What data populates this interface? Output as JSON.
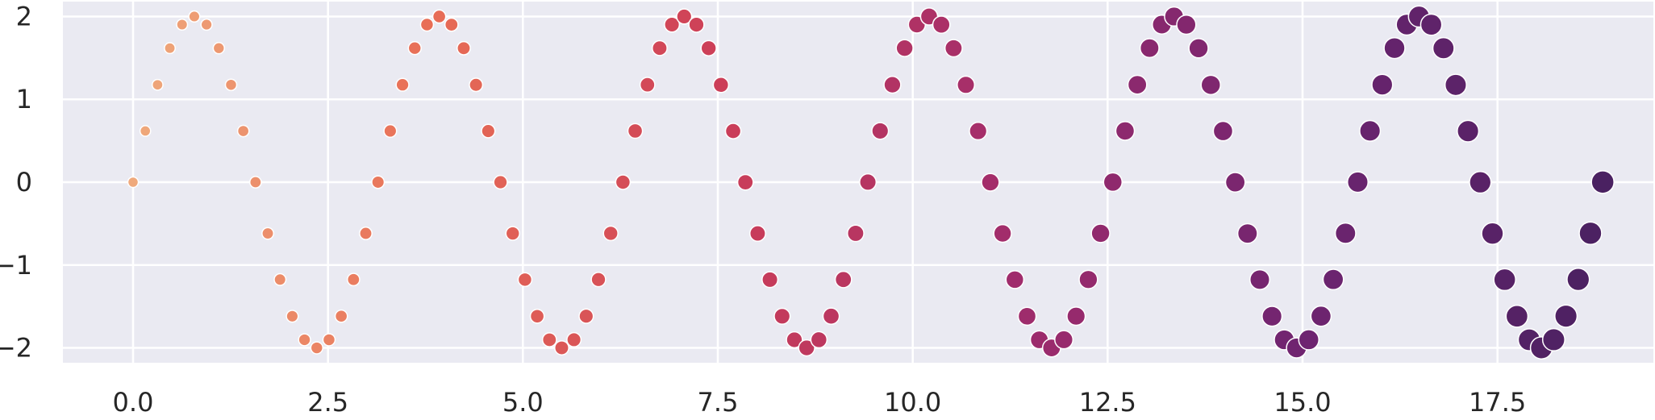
{
  "chart_data": {
    "type": "scatter",
    "title": "",
    "xlabel": "",
    "ylabel": "",
    "xlim": [
      -0.9,
      19.5
    ],
    "ylim": [
      -2.18,
      2.18
    ],
    "x_ticks": [
      0.0,
      2.5,
      5.0,
      7.5,
      10.0,
      12.5,
      15.0,
      17.5
    ],
    "x_tick_labels": [
      "0.0",
      "2.5",
      "5.0",
      "7.5",
      "10.0",
      "12.5",
      "15.0",
      "17.5"
    ],
    "y_ticks": [
      -2,
      -1,
      0,
      1,
      2
    ],
    "y_tick_labels": [
      "−2",
      "−1",
      "0",
      "1",
      "2"
    ],
    "grid": true,
    "legend": "none",
    "series": [
      {
        "function": "y = 2 * sin(2x)",
        "x_start": 0.0,
        "x_end": 18.85,
        "point_count": 121,
        "encoding": "marker size and color increase with x",
        "colormap": "flare",
        "color_start": "#efa97c",
        "color_end": "#4a2161"
      }
    ],
    "style": {
      "plot_background": "#eaeaf2",
      "grid_color": "#ffffff",
      "marker_edge_color": "#ffffff"
    }
  }
}
